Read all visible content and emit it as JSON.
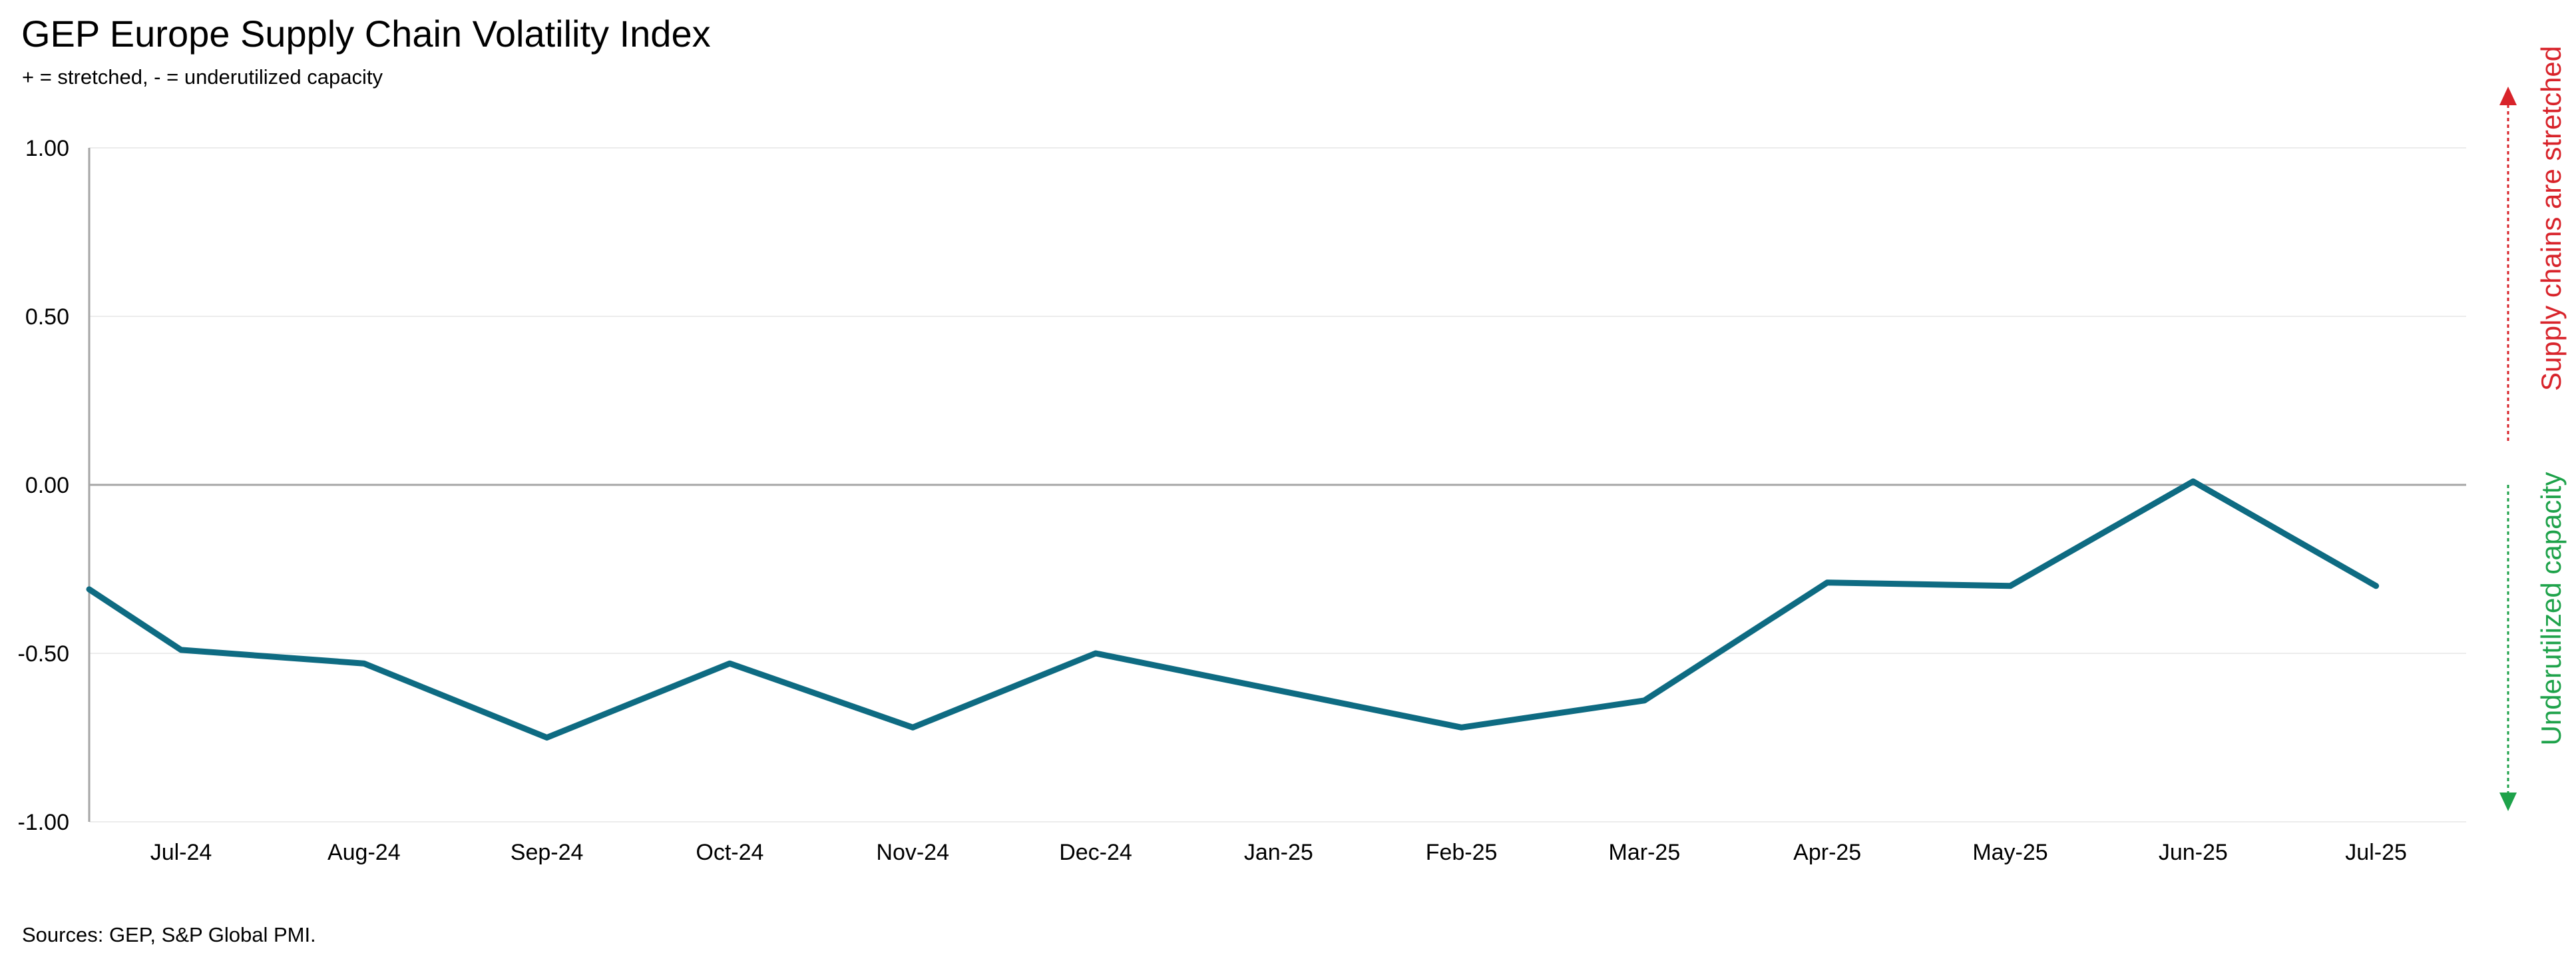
{
  "chart_data": {
    "type": "line",
    "title": "GEP Europe Supply Chain Volatility Index",
    "subtitle": "+ = stretched, - = underutilized capacity",
    "source": "Sources: GEP, S&P Global PMI.",
    "xlabel": "",
    "ylabel": "",
    "ylim": [
      -1.0,
      1.0
    ],
    "yticks": [
      "1.00",
      "0.50",
      "0.00",
      "-0.50",
      "-1.00"
    ],
    "ytick_values": [
      1.0,
      0.5,
      0.0,
      -0.5,
      -1.0
    ],
    "categories": [
      "Jul-24",
      "Aug-24",
      "Sep-24",
      "Oct-24",
      "Nov-24",
      "Dec-24",
      "Jan-25",
      "Feb-25",
      "Mar-25",
      "Apr-25",
      "May-25",
      "Jun-25",
      "Jul-25"
    ],
    "start_value": -0.31,
    "series": [
      {
        "color": "#0e6b82",
        "values": [
          -0.49,
          -0.53,
          -0.75,
          -0.53,
          -0.72,
          -0.5,
          -0.61,
          -0.72,
          -0.64,
          -0.29,
          -0.3,
          0.01,
          -0.3
        ]
      }
    ],
    "grid": true,
    "legend": "none",
    "annotations": {
      "upper": "Supply chains are stretched",
      "lower": "Underutilized capacity",
      "upper_color": "#d8232a",
      "lower_color": "#1ea24a"
    }
  }
}
